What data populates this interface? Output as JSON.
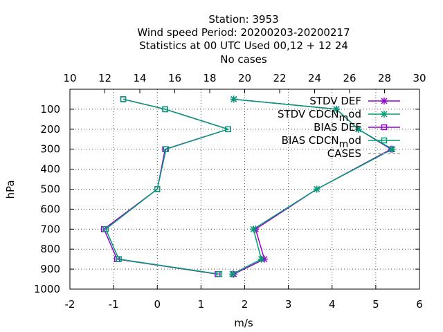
{
  "chart_data": {
    "type": "line",
    "title_lines": [
      "Station:      3953",
      "Wind speed  Period: 20200203-20200217",
      "Statistics at 00 UTC  Used  00,12  + 12 24",
      "No cases"
    ],
    "xlabel": "m/s",
    "ylabel": "hPa",
    "xlim": [
      -2,
      6
    ],
    "ylim": [
      1000,
      0
    ],
    "x_ticks": [
      "-2",
      "-1",
      "0",
      "1",
      "2",
      "3",
      "4",
      "5",
      "6"
    ],
    "x2lim": [
      10,
      30
    ],
    "x2_ticks": [
      "10",
      "12",
      "14",
      "16",
      "18",
      "20",
      "22",
      "24",
      "26",
      "28",
      "30"
    ],
    "y_ticks": [
      {
        "v": 100,
        "label": "100"
      },
      {
        "v": 200,
        "label": "200"
      },
      {
        "v": 300,
        "label": "300"
      },
      {
        "v": 400,
        "label": "400"
      },
      {
        "v": 500,
        "label": "500"
      },
      {
        "v": 600,
        "label": "600"
      },
      {
        "v": 700,
        "label": "700"
      },
      {
        "v": 800,
        "label": "800"
      },
      {
        "v": 900,
        "label": "900"
      },
      {
        "v": 1000,
        "label": "1000"
      }
    ],
    "grid": true,
    "legend_position": "top-right",
    "series": [
      {
        "name": "STDV DEF",
        "color": "#9400d3",
        "marker": "star",
        "dash": false,
        "points": [
          [
            1.75,
            925
          ],
          [
            2.45,
            850
          ],
          [
            2.25,
            700
          ],
          [
            3.65,
            500
          ],
          [
            5.35,
            300
          ],
          [
            4.6,
            200
          ],
          [
            4.1,
            100
          ],
          [
            1.75,
            50
          ]
        ]
      },
      {
        "name": "STDV CDCN_mod",
        "color": "#009e73",
        "marker": "star",
        "dash": false,
        "points": [
          [
            1.72,
            925
          ],
          [
            2.38,
            850
          ],
          [
            2.2,
            700
          ],
          [
            3.65,
            500
          ],
          [
            5.38,
            300
          ],
          [
            4.6,
            200
          ],
          [
            4.1,
            100
          ],
          [
            1.75,
            50
          ]
        ]
      },
      {
        "name": "BIAS DEF",
        "color": "#9400d3",
        "marker": "square",
        "dash": false,
        "points": [
          [
            1.38,
            925
          ],
          [
            -0.92,
            850
          ],
          [
            -1.22,
            700
          ],
          [
            0,
            500
          ],
          [
            0.18,
            300
          ],
          [
            1.62,
            200
          ],
          [
            0.18,
            100
          ],
          [
            -0.78,
            50
          ]
        ]
      },
      {
        "name": "BIAS CDCN_mod",
        "color": "#009e73",
        "marker": "square",
        "dash": false,
        "points": [
          [
            1.42,
            925
          ],
          [
            -0.88,
            850
          ],
          [
            -1.18,
            700
          ],
          [
            0,
            500
          ],
          [
            0.2,
            300
          ],
          [
            1.62,
            200
          ],
          [
            0.18,
            100
          ],
          [
            -0.78,
            50
          ]
        ]
      },
      {
        "name": "CASES",
        "color": "#aaaaaa",
        "marker": "none",
        "dash": true,
        "points": []
      }
    ]
  }
}
